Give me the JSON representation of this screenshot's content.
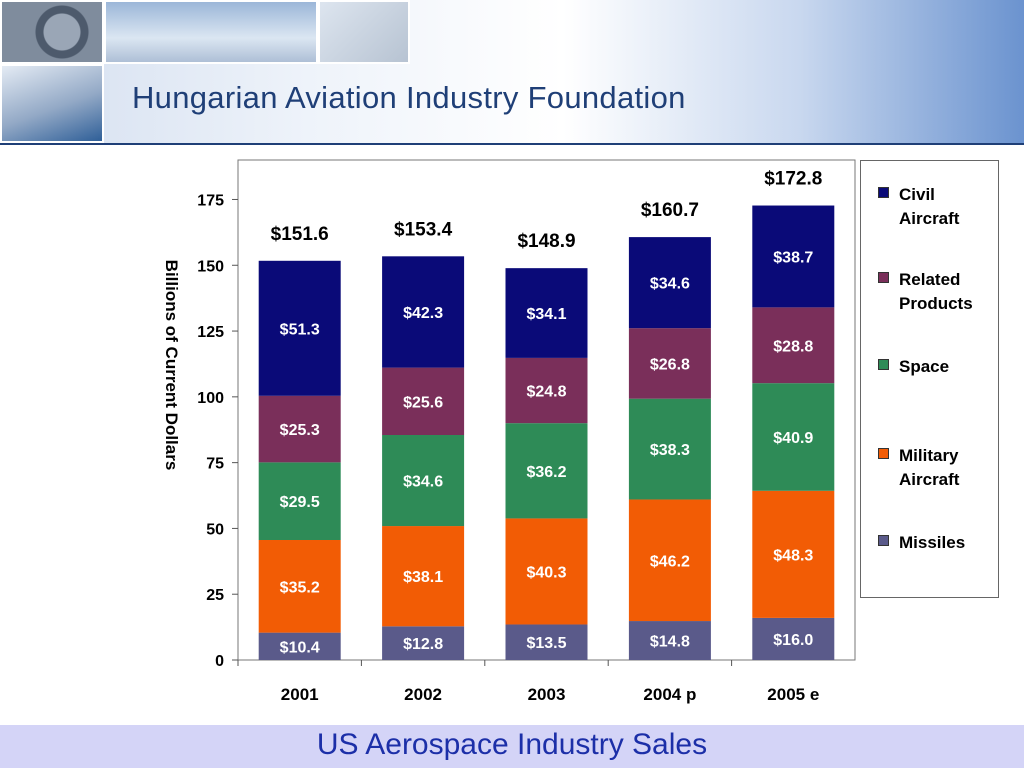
{
  "header": {
    "title": "Hungarian Aviation Industry Foundation"
  },
  "footer": {
    "title": "US Aerospace Industry Sales"
  },
  "chart_data": {
    "type": "bar",
    "stacked": true,
    "categories": [
      "2001",
      "2002",
      "2003",
      "2004 p",
      "2005 e"
    ],
    "ylabel": "Billions of Current Dollars",
    "xlabel": "",
    "ylim": [
      0,
      190
    ],
    "yticks": [
      0,
      25,
      50,
      75,
      100,
      125,
      150,
      175
    ],
    "totals": [
      151.6,
      153.4,
      148.9,
      160.7,
      172.8
    ],
    "total_labels": [
      "$151.6",
      "$153.4",
      "$148.9",
      "$160.7",
      "$172.8"
    ],
    "legend_position": "right",
    "series": [
      {
        "name": "Missiles",
        "color": "#5a5a8a",
        "values": [
          10.4,
          12.8,
          13.5,
          14.8,
          16.0
        ],
        "labels": [
          "$10.4",
          "$12.8",
          "$13.5",
          "$14.8",
          "$16.0"
        ]
      },
      {
        "name": "Military Aircraft",
        "color": "#f25c05",
        "values": [
          35.2,
          38.1,
          40.3,
          46.2,
          48.3
        ],
        "labels": [
          "$35.2",
          "$38.1",
          "$40.3",
          "$46.2",
          "$48.3"
        ]
      },
      {
        "name": "Space",
        "color": "#2e8b57",
        "values": [
          29.5,
          34.6,
          36.2,
          38.3,
          40.9
        ],
        "labels": [
          "$29.5",
          "$34.6",
          "$36.2",
          "$38.3",
          "$40.9"
        ]
      },
      {
        "name": "Related Products",
        "color": "#7a2f5a",
        "values": [
          25.3,
          25.6,
          24.8,
          26.8,
          28.8
        ],
        "labels": [
          "$25.3",
          "$25.6",
          "$24.8",
          "$26.8",
          "$28.8"
        ]
      },
      {
        "name": "Civil Aircraft",
        "color": "#0a0a78",
        "values": [
          51.3,
          42.3,
          34.1,
          34.6,
          38.7
        ],
        "labels": [
          "$51.3",
          "$42.3",
          "$34.1",
          "$34.6",
          "$38.7"
        ]
      }
    ]
  }
}
